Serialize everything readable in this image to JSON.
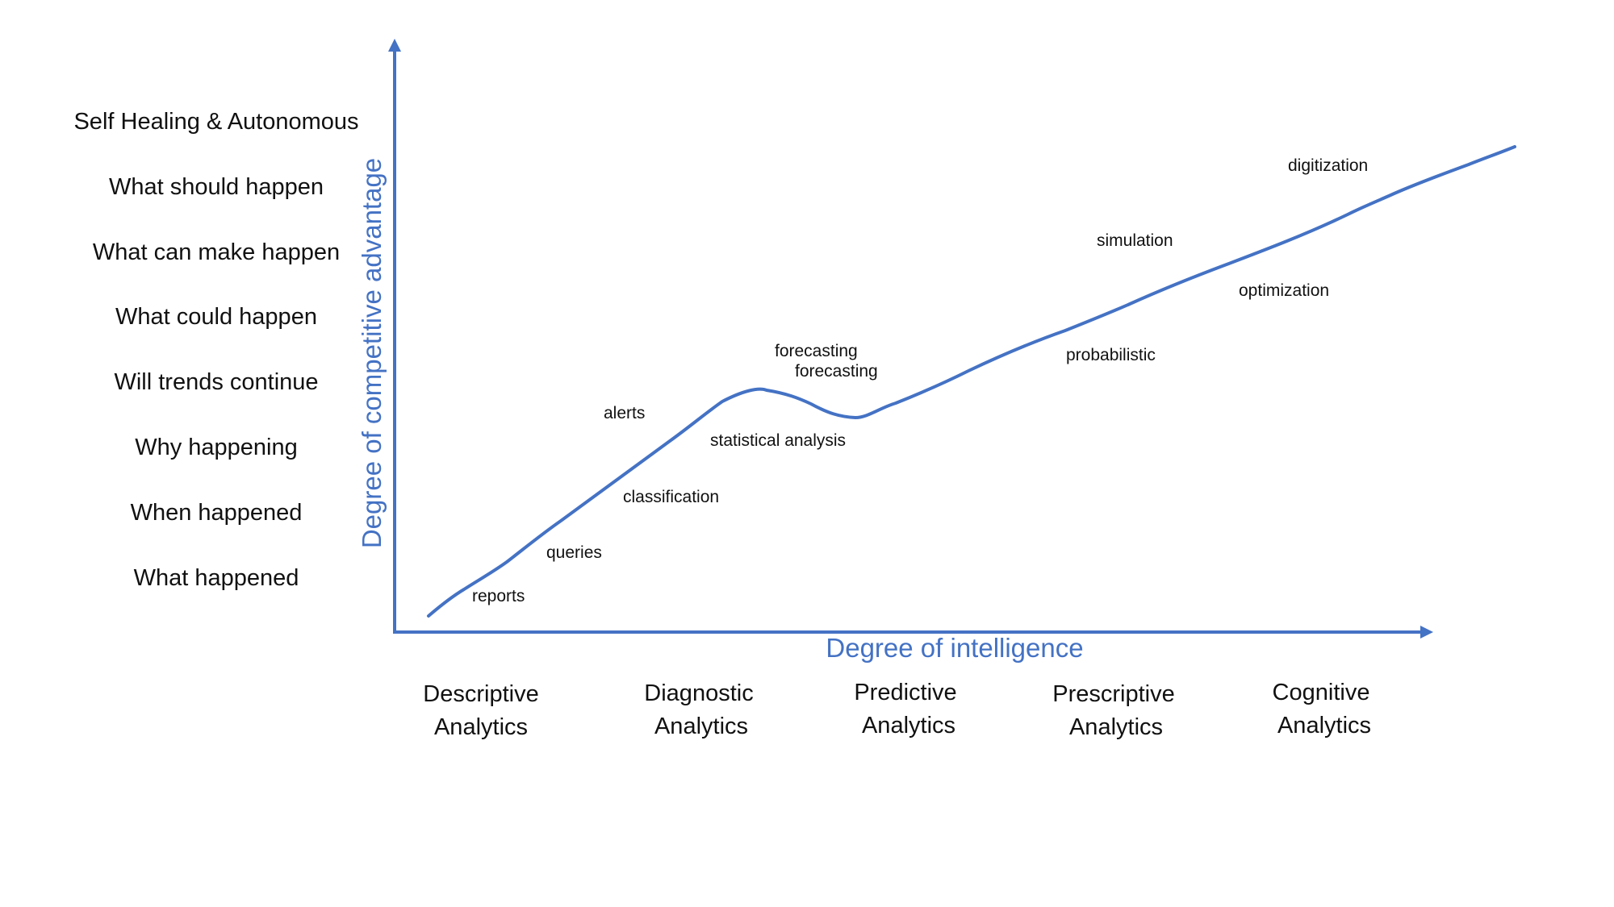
{
  "questions": [
    "Self Healing & Autonomous",
    "What should happen",
    "What can make happen",
    "What could happen",
    "Will trends continue",
    "Why happening",
    "When happened",
    "What happened"
  ],
  "y_axis_title": "Degree of competitive advantage",
  "x_axis_title": "Degree of intelligence",
  "stages": [
    {
      "line1": "Descriptive",
      "line2": "Analytics"
    },
    {
      "line1": "Diagnostic",
      "line2": "Analytics"
    },
    {
      "line1": "Predictive",
      "line2": "Analytics"
    },
    {
      "line1": "Prescriptive",
      "line2": "Analytics"
    },
    {
      "line1": "Cognitive",
      "line2": "Analytics"
    }
  ],
  "annotations": [
    "reports",
    "queries",
    "classification",
    "alerts",
    "statistical analysis",
    "forecasting",
    "forecasting",
    "probabilistic",
    "simulation",
    "optimization",
    "digitization"
  ],
  "colors": {
    "axis": "#4472C4",
    "curve": "#4472C4",
    "text": "#111111"
  }
}
